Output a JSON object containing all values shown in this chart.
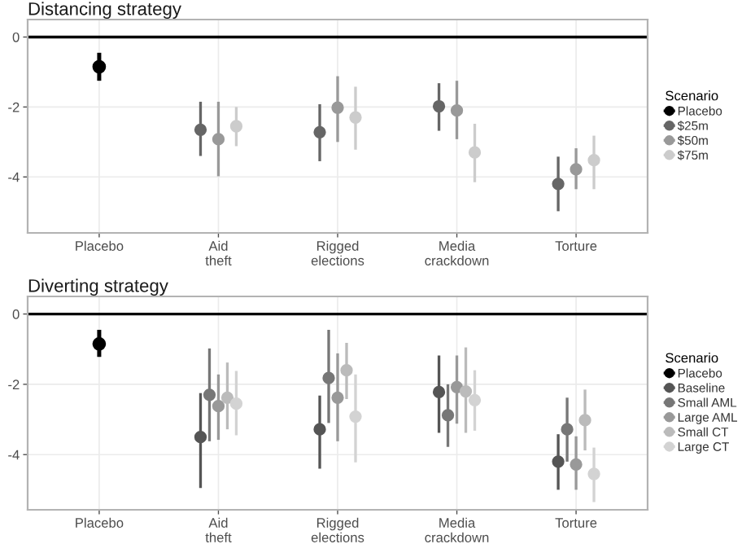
{
  "chart_data": [
    {
      "type": "scatter",
      "title": "Distancing strategy",
      "legend_title": "Scenario",
      "legend": "right",
      "grid": true,
      "marker": "circle",
      "categories": [
        "Placebo",
        "Aid\ntheft",
        "Rigged\nelections",
        "Media\ncrackdown",
        "Torture"
      ],
      "ylim": [
        -5.6,
        0.5
      ],
      "yticks": [
        0,
        -2,
        -4
      ],
      "ref_lines": [
        {
          "axis": "y",
          "value": 0,
          "color": "#000000"
        }
      ],
      "series": [
        {
          "name": "Placebo",
          "color": "#000000",
          "values": [
            -0.85,
            null,
            null,
            null,
            null
          ],
          "errors": [
            [
              -1.25,
              -0.45
            ],
            null,
            null,
            null,
            null
          ]
        },
        {
          "name": "$25m",
          "color": "#666666",
          "values": [
            null,
            -2.65,
            -2.72,
            -1.98,
            -4.2
          ],
          "errors": [
            null,
            [
              -3.4,
              -1.85
            ],
            [
              -3.55,
              -1.92
            ],
            [
              -2.68,
              -1.32
            ],
            [
              -4.98,
              -3.42
            ]
          ]
        },
        {
          "name": "$50m",
          "color": "#999999",
          "values": [
            null,
            -2.92,
            -2.02,
            -2.1,
            -3.78
          ],
          "errors": [
            null,
            [
              -3.98,
              -1.85
            ],
            [
              -3.0,
              -1.12
            ],
            [
              -2.92,
              -1.25
            ],
            [
              -4.35,
              -3.18
            ]
          ]
        },
        {
          "name": "$75m",
          "color": "#cccccc",
          "values": [
            null,
            -2.55,
            -2.3,
            -3.3,
            -3.52
          ],
          "errors": [
            null,
            [
              -3.12,
              -2.0
            ],
            [
              -3.22,
              -1.42
            ],
            [
              -4.15,
              -2.48
            ],
            [
              -4.35,
              -2.82
            ]
          ]
        }
      ]
    },
    {
      "type": "scatter",
      "title": "Diverting strategy",
      "legend_title": "Scenario",
      "legend": "right",
      "grid": true,
      "marker": "circle",
      "categories": [
        "Placebo",
        "Aid\ntheft",
        "Rigged\nelections",
        "Media\ncrackdown",
        "Torture"
      ],
      "ylim": [
        -5.57,
        0.5
      ],
      "yticks": [
        0,
        -2,
        -4
      ],
      "ref_lines": [
        {
          "axis": "y",
          "value": 0,
          "color": "#000000"
        }
      ],
      "series": [
        {
          "name": "Placebo",
          "color": "#000000",
          "values": [
            -0.85,
            null,
            null,
            null,
            null
          ],
          "errors": [
            [
              -1.22,
              -0.45
            ],
            null,
            null,
            null,
            null
          ]
        },
        {
          "name": "Baseline",
          "color": "#555555",
          "values": [
            null,
            -3.5,
            -3.28,
            -2.22,
            -4.2
          ],
          "errors": [
            null,
            [
              -4.95,
              -2.25
            ],
            [
              -4.4,
              -2.32
            ],
            [
              -3.38,
              -1.18
            ],
            [
              -5.0,
              -3.42
            ]
          ]
        },
        {
          "name": "Small AML",
          "color": "#777777",
          "values": [
            null,
            -2.3,
            -1.82,
            -2.88,
            -3.28
          ],
          "errors": [
            null,
            [
              -3.62,
              -0.98
            ],
            [
              -3.1,
              -0.45
            ],
            [
              -3.78,
              -2.0
            ],
            [
              -4.2,
              -2.38
            ]
          ]
        },
        {
          "name": "Large AML",
          "color": "#999999",
          "values": [
            null,
            -2.62,
            -2.38,
            -2.08,
            -4.28
          ],
          "errors": [
            null,
            [
              -3.58,
              -1.72
            ],
            [
              -3.62,
              -1.12
            ],
            [
              -3.12,
              -1.18
            ],
            [
              -5.0,
              -3.48
            ]
          ]
        },
        {
          "name": "Small CT",
          "color": "#bbbbbb",
          "values": [
            null,
            -2.38,
            -1.6,
            -2.2,
            -3.02
          ],
          "errors": [
            null,
            [
              -3.28,
              -1.38
            ],
            [
              -2.42,
              -0.82
            ],
            [
              -3.38,
              -0.95
            ],
            [
              -3.88,
              -2.15
            ]
          ]
        },
        {
          "name": "Large CT",
          "color": "#d3d3d3",
          "values": [
            null,
            -2.55,
            -2.92,
            -2.45,
            -4.55
          ],
          "errors": [
            null,
            [
              -3.45,
              -1.62
            ],
            [
              -4.22,
              -1.72
            ],
            [
              -3.32,
              -1.6
            ],
            [
              -5.35,
              -3.8
            ]
          ]
        }
      ]
    }
  ]
}
